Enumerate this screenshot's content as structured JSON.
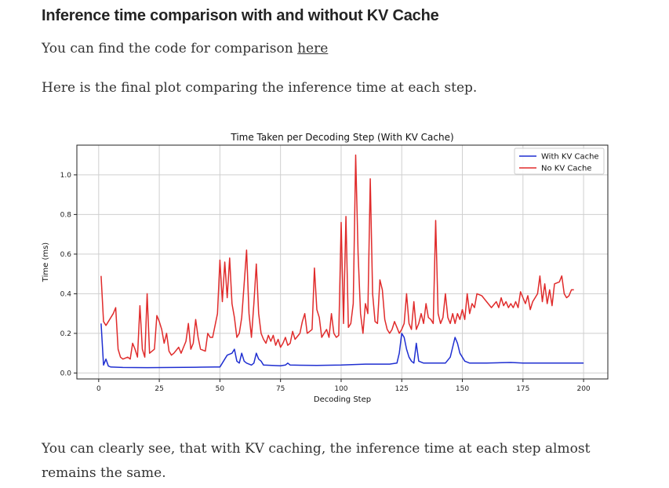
{
  "article": {
    "heading": "Inference time comparison with and without KV Cache",
    "p1_text": "You can find the code for comparison ",
    "p1_link": "here",
    "p2_text": "Here is the final plot comparing the inference time at each step.",
    "p3_text": "You can clearly see, that with KV caching, the inference time at each step almost remains the same."
  },
  "colors": {
    "with_kv": "#1f2fd1",
    "no_kv": "#e02b2b",
    "grid": "#cfcfcf"
  },
  "chart_data": {
    "type": "line",
    "title": "Time Taken per Decoding Step (With KV Cache)",
    "xlabel": "Decoding Step",
    "ylabel": "Time (ms)",
    "xlim": [
      -9,
      210
    ],
    "ylim": [
      -0.03,
      1.15
    ],
    "x_ticks": [
      0,
      25,
      50,
      75,
      100,
      125,
      150,
      175,
      200
    ],
    "x_tick_labels": [
      "0",
      "25",
      "50",
      "75",
      "100",
      "125",
      "150",
      "175",
      "200"
    ],
    "y_ticks": [
      0.0,
      0.2,
      0.4,
      0.6,
      0.8,
      1.0
    ],
    "y_tick_labels": [
      "0.0",
      "0.2",
      "0.4",
      "0.6",
      "0.8",
      "1.0"
    ],
    "grid": true,
    "legend_position": "top-right",
    "series": [
      {
        "name": "With KV Cache",
        "points": [
          [
            1,
            0.25
          ],
          [
            2,
            0.04
          ],
          [
            3,
            0.07
          ],
          [
            4,
            0.035
          ],
          [
            5,
            0.03
          ],
          [
            10,
            0.028
          ],
          [
            20,
            0.027
          ],
          [
            30,
            0.028
          ],
          [
            40,
            0.029
          ],
          [
            48,
            0.03
          ],
          [
            50,
            0.03
          ],
          [
            52,
            0.07
          ],
          [
            53,
            0.09
          ],
          [
            55,
            0.1
          ],
          [
            56,
            0.12
          ],
          [
            57,
            0.06
          ],
          [
            58,
            0.05
          ],
          [
            59,
            0.1
          ],
          [
            60,
            0.06
          ],
          [
            61,
            0.05
          ],
          [
            63,
            0.04
          ],
          [
            64,
            0.05
          ],
          [
            65,
            0.1
          ],
          [
            66,
            0.07
          ],
          [
            67,
            0.06
          ],
          [
            68,
            0.04
          ],
          [
            75,
            0.036
          ],
          [
            77,
            0.04
          ],
          [
            78,
            0.05
          ],
          [
            79,
            0.04
          ],
          [
            90,
            0.038
          ],
          [
            100,
            0.04
          ],
          [
            110,
            0.045
          ],
          [
            120,
            0.045
          ],
          [
            123,
            0.05
          ],
          [
            124,
            0.1
          ],
          [
            125,
            0.2
          ],
          [
            126,
            0.18
          ],
          [
            127,
            0.12
          ],
          [
            128,
            0.08
          ],
          [
            129,
            0.06
          ],
          [
            130,
            0.05
          ],
          [
            131,
            0.15
          ],
          [
            132,
            0.06
          ],
          [
            134,
            0.05
          ],
          [
            140,
            0.05
          ],
          [
            143,
            0.05
          ],
          [
            145,
            0.08
          ],
          [
            147,
            0.18
          ],
          [
            148,
            0.15
          ],
          [
            149,
            0.1
          ],
          [
            151,
            0.06
          ],
          [
            153,
            0.05
          ],
          [
            160,
            0.05
          ],
          [
            170,
            0.053
          ],
          [
            175,
            0.05
          ],
          [
            185,
            0.05
          ],
          [
            190,
            0.05
          ],
          [
            200,
            0.05
          ]
        ]
      },
      {
        "name": "No KV Cache",
        "points": [
          [
            1,
            0.49
          ],
          [
            2,
            0.26
          ],
          [
            3,
            0.24
          ],
          [
            4,
            0.26
          ],
          [
            6,
            0.3
          ],
          [
            7,
            0.33
          ],
          [
            8,
            0.12
          ],
          [
            9,
            0.08
          ],
          [
            10,
            0.07
          ],
          [
            12,
            0.08
          ],
          [
            13,
            0.07
          ],
          [
            14,
            0.15
          ],
          [
            15,
            0.12
          ],
          [
            16,
            0.08
          ],
          [
            17,
            0.34
          ],
          [
            18,
            0.12
          ],
          [
            19,
            0.08
          ],
          [
            20,
            0.4
          ],
          [
            21,
            0.1
          ],
          [
            23,
            0.12
          ],
          [
            24,
            0.29
          ],
          [
            25,
            0.26
          ],
          [
            26,
            0.22
          ],
          [
            27,
            0.15
          ],
          [
            28,
            0.2
          ],
          [
            29,
            0.11
          ],
          [
            30,
            0.09
          ],
          [
            31,
            0.1
          ],
          [
            33,
            0.13
          ],
          [
            34,
            0.1
          ],
          [
            35,
            0.13
          ],
          [
            36,
            0.16
          ],
          [
            37,
            0.25
          ],
          [
            38,
            0.12
          ],
          [
            39,
            0.15
          ],
          [
            40,
            0.27
          ],
          [
            41,
            0.18
          ],
          [
            42,
            0.12
          ],
          [
            44,
            0.11
          ],
          [
            45,
            0.2
          ],
          [
            46,
            0.18
          ],
          [
            47,
            0.18
          ],
          [
            49,
            0.3
          ],
          [
            50,
            0.57
          ],
          [
            51,
            0.36
          ],
          [
            52,
            0.56
          ],
          [
            53,
            0.38
          ],
          [
            54,
            0.58
          ],
          [
            55,
            0.35
          ],
          [
            56,
            0.28
          ],
          [
            57,
            0.18
          ],
          [
            58,
            0.2
          ],
          [
            59,
            0.28
          ],
          [
            60,
            0.45
          ],
          [
            61,
            0.62
          ],
          [
            62,
            0.3
          ],
          [
            63,
            0.18
          ],
          [
            64,
            0.35
          ],
          [
            65,
            0.55
          ],
          [
            66,
            0.3
          ],
          [
            67,
            0.2
          ],
          [
            68,
            0.17
          ],
          [
            69,
            0.15
          ],
          [
            70,
            0.19
          ],
          [
            71,
            0.16
          ],
          [
            72,
            0.19
          ],
          [
            73,
            0.14
          ],
          [
            74,
            0.17
          ],
          [
            75,
            0.13
          ],
          [
            76,
            0.15
          ],
          [
            77,
            0.18
          ],
          [
            78,
            0.14
          ],
          [
            79,
            0.15
          ],
          [
            80,
            0.21
          ],
          [
            81,
            0.17
          ],
          [
            83,
            0.2
          ],
          [
            84,
            0.26
          ],
          [
            85,
            0.3
          ],
          [
            86,
            0.2
          ],
          [
            88,
            0.22
          ],
          [
            89,
            0.53
          ],
          [
            90,
            0.32
          ],
          [
            91,
            0.28
          ],
          [
            92,
            0.18
          ],
          [
            93,
            0.2
          ],
          [
            94,
            0.22
          ],
          [
            95,
            0.18
          ],
          [
            96,
            0.3
          ],
          [
            97,
            0.2
          ],
          [
            98,
            0.18
          ],
          [
            99,
            0.19
          ],
          [
            100,
            0.76
          ],
          [
            101,
            0.25
          ],
          [
            102,
            0.79
          ],
          [
            103,
            0.23
          ],
          [
            104,
            0.25
          ],
          [
            105,
            0.35
          ],
          [
            106,
            1.1
          ],
          [
            107,
            0.6
          ],
          [
            108,
            0.3
          ],
          [
            109,
            0.2
          ],
          [
            110,
            0.35
          ],
          [
            111,
            0.3
          ],
          [
            112,
            0.98
          ],
          [
            113,
            0.4
          ],
          [
            114,
            0.26
          ],
          [
            115,
            0.25
          ],
          [
            116,
            0.47
          ],
          [
            117,
            0.42
          ],
          [
            118,
            0.27
          ],
          [
            119,
            0.22
          ],
          [
            120,
            0.2
          ],
          [
            121,
            0.22
          ],
          [
            122,
            0.26
          ],
          [
            123,
            0.23
          ],
          [
            124,
            0.2
          ],
          [
            125,
            0.22
          ],
          [
            126,
            0.25
          ],
          [
            127,
            0.4
          ],
          [
            128,
            0.25
          ],
          [
            129,
            0.22
          ],
          [
            130,
            0.36
          ],
          [
            131,
            0.22
          ],
          [
            132,
            0.25
          ],
          [
            133,
            0.3
          ],
          [
            134,
            0.25
          ],
          [
            135,
            0.35
          ],
          [
            136,
            0.28
          ],
          [
            137,
            0.27
          ],
          [
            138,
            0.25
          ],
          [
            139,
            0.77
          ],
          [
            140,
            0.3
          ],
          [
            141,
            0.25
          ],
          [
            142,
            0.28
          ],
          [
            143,
            0.4
          ],
          [
            144,
            0.28
          ],
          [
            145,
            0.25
          ],
          [
            146,
            0.3
          ],
          [
            147,
            0.25
          ],
          [
            148,
            0.3
          ],
          [
            149,
            0.27
          ],
          [
            150,
            0.32
          ],
          [
            151,
            0.27
          ],
          [
            152,
            0.4
          ],
          [
            153,
            0.3
          ],
          [
            154,
            0.35
          ],
          [
            155,
            0.33
          ],
          [
            156,
            0.4
          ],
          [
            158,
            0.39
          ],
          [
            160,
            0.36
          ],
          [
            162,
            0.33
          ],
          [
            164,
            0.36
          ],
          [
            165,
            0.33
          ],
          [
            166,
            0.38
          ],
          [
            167,
            0.34
          ],
          [
            168,
            0.36
          ],
          [
            169,
            0.33
          ],
          [
            170,
            0.35
          ],
          [
            171,
            0.33
          ],
          [
            172,
            0.36
          ],
          [
            173,
            0.33
          ],
          [
            174,
            0.41
          ],
          [
            175,
            0.38
          ],
          [
            176,
            0.35
          ],
          [
            177,
            0.39
          ],
          [
            178,
            0.32
          ],
          [
            179,
            0.36
          ],
          [
            180,
            0.38
          ],
          [
            181,
            0.4
          ],
          [
            182,
            0.49
          ],
          [
            183,
            0.36
          ],
          [
            184,
            0.45
          ],
          [
            185,
            0.35
          ],
          [
            186,
            0.42
          ],
          [
            187,
            0.34
          ],
          [
            188,
            0.45
          ],
          [
            190,
            0.46
          ],
          [
            191,
            0.49
          ],
          [
            192,
            0.4
          ],
          [
            193,
            0.38
          ],
          [
            194,
            0.39
          ],
          [
            195,
            0.42
          ],
          [
            196,
            0.42
          ]
        ]
      }
    ]
  }
}
